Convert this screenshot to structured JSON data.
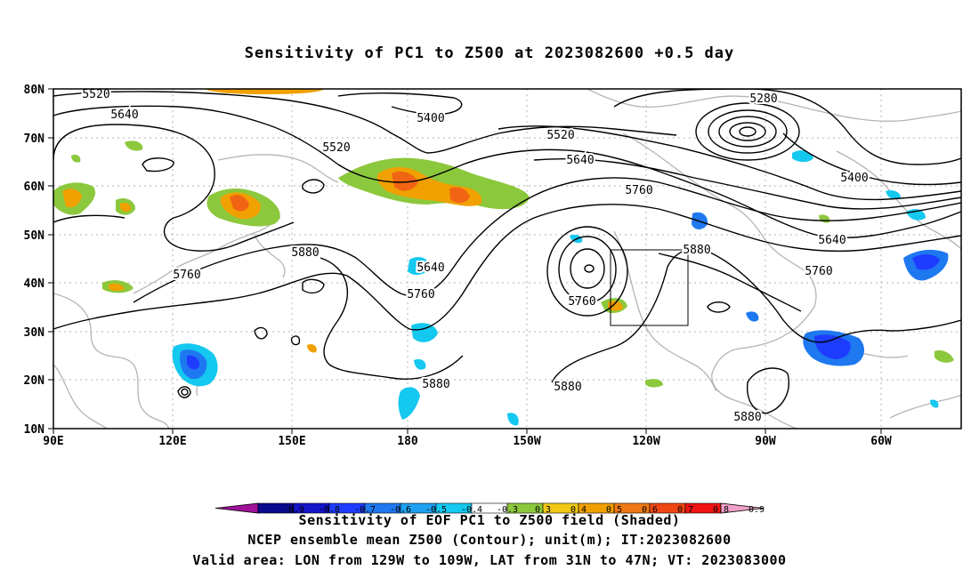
{
  "title": "Sensitivity of PC1 to Z500 at 2023082600 +0.5 day",
  "map": {
    "lon_labels": [
      "90E",
      "120E",
      "150E",
      "180",
      "150W",
      "120W",
      "90W",
      "60W"
    ],
    "lat_labels": [
      "80N",
      "70N",
      "60N",
      "50N",
      "40N",
      "30N",
      "20N",
      "10N"
    ],
    "contour_labels": [
      "5520",
      "5640",
      "5520",
      "5400",
      "5520",
      "5640",
      "5760",
      "5280",
      "5400",
      "5640",
      "5760",
      "5880",
      "5760",
      "5880",
      "5640",
      "5760",
      "5760",
      "5880",
      "5880",
      "5880"
    ],
    "box": "Valid area box (129W–109W, 31N–47N)"
  },
  "colorbar": {
    "ticks": [
      "-0.9",
      "-0.8",
      "-0.7",
      "-0.6",
      "-0.5",
      "-0.4",
      "-0.3",
      "0.3",
      "0.4",
      "0.5",
      "0.6",
      "0.7",
      "0.8",
      "0.9"
    ],
    "colors": [
      "#a0119a",
      "#0a0a8c",
      "#1414c8",
      "#1e3cff",
      "#1e78f0",
      "#1ea0f0",
      "#14c8f0",
      "#ffffff",
      "#8cc83c",
      "#f0c814",
      "#f0a000",
      "#f07814",
      "#f04614",
      "#f01414",
      "#f0a0c8"
    ]
  },
  "captions": {
    "line1": "Sensitivity of EOF PC1 to Z500 field (Shaded)",
    "line2": "NCEP ensemble mean Z500 (Contour); unit(m); IT:2023082600",
    "line3": "Valid area: LON from 129W to 109W, LAT from 31N to 47N; VT: 2023083000"
  },
  "colors": {
    "positive": "#8cc83c",
    "positive_mid": "#f0a000",
    "positive_high": "#f06414",
    "negative": "#14c8f0",
    "negative_mid": "#1e78f0",
    "coast": "#b4b4b4",
    "grid": "#b4b4b4"
  }
}
